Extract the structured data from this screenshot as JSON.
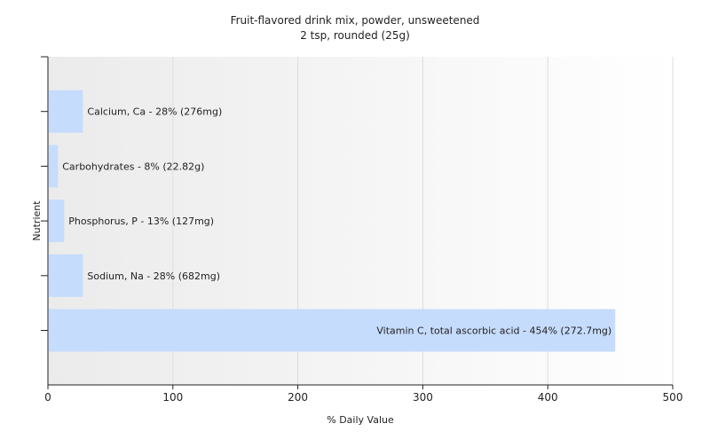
{
  "chart_data": {
    "type": "bar",
    "orientation": "horizontal",
    "title": "Fruit-flavored drink mix, powder, unsweetened",
    "subtitle": "2 tsp, rounded (25g)",
    "xlabel": "% Daily Value",
    "ylabel": "Nutrient",
    "xlim": [
      0,
      500
    ],
    "xticks": [
      0,
      100,
      200,
      300,
      400,
      500
    ],
    "grid": true,
    "bar_color": "#c6dcfc",
    "categories": [
      "Calcium, Ca",
      "Carbohydrates",
      "Phosphorus, P",
      "Sodium, Na",
      "Vitamin C, total ascorbic acid"
    ],
    "values": [
      28,
      8,
      13,
      28,
      454
    ],
    "data_labels": [
      "Calcium, Ca - 28% (276mg)",
      "Carbohydrates - 8% (22.82g)",
      "Phosphorus, P - 13% (127mg)",
      "Sodium, Na - 28% (682mg)",
      "Vitamin C, total ascorbic acid - 454% (272.7mg)"
    ]
  }
}
